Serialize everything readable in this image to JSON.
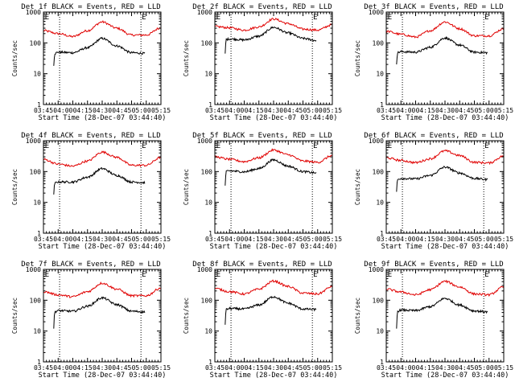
{
  "figure": {
    "background": "#ffffff",
    "axis_color": "#000000",
    "events_color": "#000000",
    "lld_color": "#e00000"
  },
  "chart_data": [
    {
      "type": "line",
      "title": "Det 1f BLACK = Events, RED = LLD",
      "xlabel": "Start Time (28-Dec-07 03:44:40)",
      "ylabel": "Counts/sec",
      "yscale": "log",
      "xlim": [
        -5,
        35
      ],
      "ylim": [
        1,
        1000
      ],
      "xticks": [
        -5,
        0,
        5,
        10,
        15,
        20,
        25,
        30
      ],
      "xtick_labels": [
        "03:45",
        "04:00",
        "04:15",
        "04:30",
        "04:45",
        "05:00",
        "05:15"
      ],
      "yticks": [
        1,
        10,
        100,
        1000
      ],
      "ytick_labels": [
        "1",
        "10",
        "100",
        "1000"
      ],
      "markers": [
        {
          "label": "E",
          "x": -4.8
        },
        {
          "label": "E",
          "x": 28.2
        }
      ],
      "dotted_lines_x": [
        0.5,
        28.2
      ],
      "series": [
        {
          "name": "LLD",
          "color": "#e00000",
          "x": [
            -5,
            0,
            5,
            10,
            15,
            20,
            25,
            30,
            35
          ],
          "values": [
            250,
            200,
            160,
            250,
            480,
            300,
            180,
            180,
            310
          ]
        },
        {
          "name": "Events",
          "color": "#000000",
          "x": [
            -1.5,
            -1.2,
            0,
            5,
            10,
            15,
            20,
            25,
            29.5
          ],
          "values": [
            18,
            45,
            50,
            48,
            70,
            140,
            80,
            48,
            46
          ]
        }
      ]
    },
    {
      "type": "line",
      "title": "Det 2f BLACK = Events, RED = LLD",
      "xlabel": "Start Time (28-Dec-07 03:44:40)",
      "ylabel": "Counts/sec",
      "yscale": "log",
      "xlim": [
        -5,
        35
      ],
      "ylim": [
        1,
        1000
      ],
      "xticks": [
        -5,
        0,
        5,
        10,
        15,
        20,
        25,
        30
      ],
      "xtick_labels": [
        "03:45",
        "04:00",
        "04:15",
        "04:30",
        "04:45",
        "05:00",
        "05:15"
      ],
      "yticks": [
        1,
        10,
        100,
        1000
      ],
      "ytick_labels": [
        "1",
        "10",
        "100",
        "1000"
      ],
      "markers": [
        {
          "label": "E",
          "x": -4.8
        },
        {
          "label": "E",
          "x": 28.2
        }
      ],
      "dotted_lines_x": [
        0.5,
        28.2
      ],
      "series": [
        {
          "name": "LLD",
          "color": "#e00000",
          "x": [
            -5,
            0,
            5,
            10,
            15,
            20,
            25,
            30,
            35
          ],
          "values": [
            340,
            310,
            260,
            330,
            600,
            420,
            280,
            260,
            390
          ]
        },
        {
          "name": "Events",
          "color": "#000000",
          "x": [
            -1.5,
            -1.2,
            0,
            5,
            10,
            15,
            20,
            25,
            29.5
          ],
          "values": [
            45,
            130,
            135,
            125,
            165,
            320,
            210,
            140,
            120
          ]
        }
      ]
    },
    {
      "type": "line",
      "title": "Det 3f BLACK = Events, RED = LLD",
      "xlabel": "Start Time (28-Dec-07 03:44:40)",
      "ylabel": "Counts/sec",
      "yscale": "log",
      "xlim": [
        -5,
        35
      ],
      "ylim": [
        1,
        1000
      ],
      "xticks": [
        -5,
        0,
        5,
        10,
        15,
        20,
        25,
        30
      ],
      "xtick_labels": [
        "03:45",
        "04:00",
        "04:15",
        "04:30",
        "04:45",
        "05:00",
        "05:15"
      ],
      "yticks": [
        1,
        10,
        100,
        1000
      ],
      "ytick_labels": [
        "1",
        "10",
        "100",
        "1000"
      ],
      "markers": [
        {
          "label": "E",
          "x": -4.8
        },
        {
          "label": "E",
          "x": 28.2
        }
      ],
      "dotted_lines_x": [
        0.5,
        28.2
      ],
      "series": [
        {
          "name": "LLD",
          "color": "#e00000",
          "x": [
            -5,
            0,
            5,
            10,
            15,
            20,
            25,
            30,
            35
          ],
          "values": [
            240,
            190,
            155,
            250,
            480,
            290,
            170,
            170,
            290
          ]
        },
        {
          "name": "Events",
          "color": "#000000",
          "x": [
            -1.5,
            -1.2,
            0,
            5,
            10,
            15,
            20,
            25,
            29.5
          ],
          "values": [
            20,
            48,
            52,
            50,
            72,
            145,
            85,
            50,
            48
          ]
        }
      ]
    },
    {
      "type": "line",
      "title": "Det 4f BLACK = Events, RED = LLD",
      "xlabel": "Start Time (28-Dec-07 03:44:40)",
      "ylabel": "Counts/sec",
      "yscale": "log",
      "xlim": [
        -5,
        35
      ],
      "ylim": [
        1,
        1000
      ],
      "xticks": [
        -5,
        0,
        5,
        10,
        15,
        20,
        25,
        30
      ],
      "xtick_labels": [
        "03:45",
        "04:00",
        "04:15",
        "04:30",
        "04:45",
        "05:00",
        "05:15"
      ],
      "yticks": [
        1,
        10,
        100,
        1000
      ],
      "ytick_labels": [
        "1",
        "10",
        "100",
        "1000"
      ],
      "markers": [
        {
          "label": "E",
          "x": -4.8
        },
        {
          "label": "E",
          "x": 28.2
        }
      ],
      "dotted_lines_x": [
        0.5,
        28.2
      ],
      "series": [
        {
          "name": "LLD",
          "color": "#e00000",
          "x": [
            -5,
            0,
            5,
            10,
            15,
            20,
            25,
            30,
            35
          ],
          "values": [
            250,
            175,
            150,
            220,
            430,
            290,
            160,
            160,
            290
          ]
        },
        {
          "name": "Events",
          "color": "#000000",
          "x": [
            -1.5,
            -1.2,
            0,
            5,
            10,
            15,
            20,
            25,
            29.5
          ],
          "values": [
            18,
            42,
            46,
            46,
            66,
            125,
            75,
            46,
            44
          ]
        }
      ]
    },
    {
      "type": "line",
      "title": "Det 5f BLACK = Events, RED = LLD",
      "xlabel": "Start Time (28-Dec-07 03:44:40)",
      "ylabel": "Counts/sec",
      "yscale": "log",
      "xlim": [
        -5,
        35
      ],
      "ylim": [
        1,
        1000
      ],
      "xticks": [
        -5,
        0,
        5,
        10,
        15,
        20,
        25,
        30
      ],
      "xtick_labels": [
        "03:45",
        "04:00",
        "04:15",
        "04:30",
        "04:45",
        "05:00",
        "05:15"
      ],
      "yticks": [
        1,
        10,
        100,
        1000
      ],
      "ytick_labels": [
        "1",
        "10",
        "100",
        "1000"
      ],
      "markers": [
        {
          "label": "E",
          "x": -4.8
        },
        {
          "label": "E",
          "x": 28.2
        }
      ],
      "dotted_lines_x": [
        0.5,
        28.2
      ],
      "series": [
        {
          "name": "LLD",
          "color": "#e00000",
          "x": [
            -5,
            0,
            5,
            10,
            15,
            20,
            25,
            30,
            35
          ],
          "values": [
            300,
            250,
            210,
            280,
            500,
            350,
            220,
            200,
            330
          ]
        },
        {
          "name": "Events",
          "color": "#000000",
          "x": [
            -1.5,
            -1.2,
            0,
            5,
            10,
            15,
            20,
            25,
            29.5
          ],
          "values": [
            35,
            100,
            105,
            98,
            125,
            240,
            150,
            100,
            90
          ]
        }
      ]
    },
    {
      "type": "line",
      "title": "Det 6f BLACK = Events, RED = LLD",
      "xlabel": "Start Time (28-Dec-07 03:44:40)",
      "ylabel": "Counts/sec",
      "yscale": "log",
      "xlim": [
        -5,
        35
      ],
      "ylim": [
        1,
        1000
      ],
      "xticks": [
        -5,
        0,
        5,
        10,
        15,
        20,
        25,
        30
      ],
      "xtick_labels": [
        "03:45",
        "04:00",
        "04:15",
        "04:30",
        "04:45",
        "05:00",
        "05:15"
      ],
      "yticks": [
        1,
        10,
        100,
        1000
      ],
      "ytick_labels": [
        "1",
        "10",
        "100",
        "1000"
      ],
      "markers": [
        {
          "label": "E",
          "x": -4.8
        },
        {
          "label": "E",
          "x": 28.2
        }
      ],
      "dotted_lines_x": [
        0.5,
        28.2
      ],
      "series": [
        {
          "name": "LLD",
          "color": "#e00000",
          "x": [
            -5,
            0,
            5,
            10,
            15,
            20,
            25,
            30,
            35
          ],
          "values": [
            280,
            230,
            195,
            260,
            470,
            330,
            200,
            190,
            320
          ]
        },
        {
          "name": "Events",
          "color": "#000000",
          "x": [
            -1.5,
            -1.2,
            0,
            5,
            10,
            15,
            20,
            25,
            29.5
          ],
          "values": [
            22,
            55,
            60,
            58,
            75,
            140,
            90,
            60,
            55
          ]
        }
      ]
    },
    {
      "type": "line",
      "title": "Det 7f BLACK = Events, RED = LLD",
      "xlabel": "Start Time (28-Dec-07 03:44:40)",
      "ylabel": "Counts/sec",
      "yscale": "log",
      "xlim": [
        -5,
        35
      ],
      "ylim": [
        1,
        1000
      ],
      "xticks": [
        -5,
        0,
        5,
        10,
        15,
        20,
        25,
        30
      ],
      "xtick_labels": [
        "03:45",
        "04:00",
        "04:15",
        "04:30",
        "04:45",
        "05:00",
        "05:15"
      ],
      "yticks": [
        1,
        10,
        100,
        1000
      ],
      "ytick_labels": [
        "1",
        "10",
        "100",
        "1000"
      ],
      "markers": [
        {
          "label": "E",
          "x": -4.8
        },
        {
          "label": "E",
          "x": 28.2
        }
      ],
      "dotted_lines_x": [
        0.5,
        28.2
      ],
      "series": [
        {
          "name": "LLD",
          "color": "#e00000",
          "x": [
            -5,
            0,
            5,
            10,
            15,
            20,
            25,
            30,
            35
          ],
          "values": [
            190,
            150,
            130,
            190,
            360,
            230,
            140,
            140,
            250
          ]
        },
        {
          "name": "Events",
          "color": "#000000",
          "x": [
            -1.5,
            -1.2,
            0,
            5,
            10,
            15,
            20,
            25,
            29.5
          ],
          "values": [
            12,
            42,
            46,
            44,
            64,
            120,
            72,
            44,
            42
          ]
        }
      ]
    },
    {
      "type": "line",
      "title": "Det 8f BLACK = Events, RED = LLD",
      "xlabel": "Start Time (28-Dec-07 03:44:40)",
      "ylabel": "Counts/sec",
      "yscale": "log",
      "xlim": [
        -5,
        35
      ],
      "ylim": [
        1,
        1000
      ],
      "xticks": [
        -5,
        0,
        5,
        10,
        15,
        20,
        25,
        30
      ],
      "xtick_labels": [
        "03:45",
        "04:00",
        "04:15",
        "04:30",
        "04:45",
        "05:00",
        "05:15"
      ],
      "yticks": [
        1,
        10,
        100,
        1000
      ],
      "ytick_labels": [
        "1",
        "10",
        "100",
        "1000"
      ],
      "markers": [
        {
          "label": "E",
          "x": -4.8
        },
        {
          "label": "E",
          "x": 28.2
        }
      ],
      "dotted_lines_x": [
        0.5,
        28.2
      ],
      "series": [
        {
          "name": "LLD",
          "color": "#e00000",
          "x": [
            -5,
            0,
            5,
            10,
            15,
            20,
            25,
            30,
            35
          ],
          "values": [
            240,
            190,
            160,
            230,
            420,
            280,
            170,
            160,
            280
          ]
        },
        {
          "name": "Events",
          "color": "#000000",
          "x": [
            -1.5,
            -1.2,
            0,
            5,
            10,
            15,
            20,
            25,
            29.5
          ],
          "values": [
            16,
            50,
            54,
            52,
            70,
            130,
            80,
            52,
            50
          ]
        }
      ]
    },
    {
      "type": "line",
      "title": "Det 9f BLACK = Events, RED = LLD",
      "xlabel": "Start Time (28-Dec-07 03:44:40)",
      "ylabel": "Counts/sec",
      "yscale": "log",
      "xlim": [
        -5,
        35
      ],
      "ylim": [
        1,
        1000
      ],
      "xticks": [
        -5,
        0,
        5,
        10,
        15,
        20,
        25,
        30
      ],
      "xtick_labels": [
        "03:45",
        "04:00",
        "04:15",
        "04:30",
        "04:45",
        "05:00",
        "05:15"
      ],
      "yticks": [
        1,
        10,
        100,
        1000
      ],
      "ytick_labels": [
        "1",
        "10",
        "100",
        "1000"
      ],
      "markers": [
        {
          "label": "E",
          "x": -4.8
        },
        {
          "label": "E",
          "x": 28.2
        }
      ],
      "dotted_lines_x": [
        0.5,
        28.2
      ],
      "series": [
        {
          "name": "LLD",
          "color": "#e00000",
          "x": [
            -5,
            0,
            5,
            10,
            15,
            20,
            25,
            30,
            35
          ],
          "values": [
            230,
            185,
            150,
            220,
            410,
            270,
            160,
            150,
            270
          ]
        },
        {
          "name": "Events",
          "color": "#000000",
          "x": [
            -1.5,
            -1.2,
            0,
            5,
            10,
            15,
            20,
            25,
            29.5
          ],
          "values": [
            12,
            44,
            48,
            46,
            62,
            115,
            70,
            45,
            42
          ]
        }
      ]
    }
  ]
}
